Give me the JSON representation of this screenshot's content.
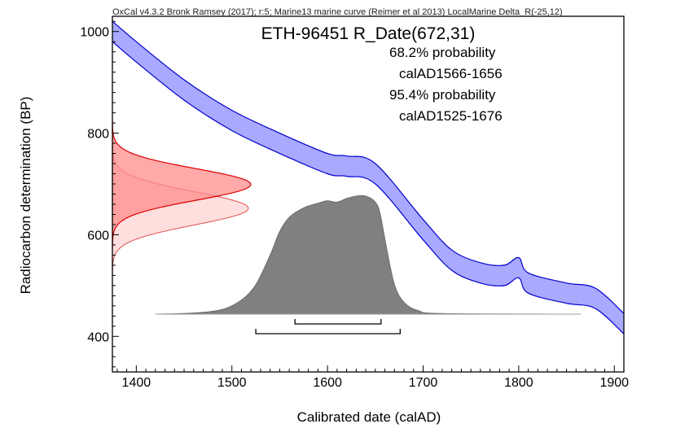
{
  "chart_data": {
    "type": "area",
    "header": "OxCal v4.3.2 Bronk Ramsey (2017); r:5; Marine13 marine curve (Reimer et al 2013) LocalMarine Delta_R(-25,12)",
    "title": "ETH-96451 R_Date(672,31)",
    "annotations": [
      "68.2% probability",
      "calAD1566-1656",
      "95.4% probability",
      "calAD1525-1676"
    ],
    "xlabel": "Calibrated date (calAD)",
    "ylabel": "Radiocarbon determination (BP)",
    "xlim": [
      1375,
      1910
    ],
    "ylim": [
      330,
      1030
    ],
    "xticks": [
      1400,
      1500,
      1600,
      1700,
      1800,
      1900
    ],
    "yticks": [
      400,
      600,
      800,
      1000
    ],
    "calibration_curve": {
      "x": [
        1375,
        1400,
        1450,
        1500,
        1550,
        1600,
        1620,
        1650,
        1700,
        1730,
        1760,
        1785,
        1800,
        1810,
        1850,
        1880,
        1910
      ],
      "upper": [
        1020,
        980,
        905,
        845,
        800,
        760,
        755,
        740,
        630,
        570,
        545,
        540,
        555,
        525,
        505,
        495,
        445
      ],
      "lower": [
        980,
        940,
        865,
        805,
        760,
        720,
        715,
        700,
        590,
        530,
        505,
        500,
        515,
        485,
        465,
        455,
        405
      ],
      "color": "#7b7bff"
    },
    "radiocarbon_date": {
      "mean": 672,
      "sigma": 31,
      "color": "#ff4d4d"
    },
    "calibrated_distribution": {
      "x": [
        1420,
        1460,
        1490,
        1510,
        1525,
        1540,
        1550,
        1560,
        1575,
        1590,
        1600,
        1610,
        1620,
        1630,
        1640,
        1650,
        1655,
        1662,
        1670,
        1680,
        1695,
        1720,
        1865
      ],
      "density": [
        0,
        0.01,
        0.04,
        0.12,
        0.25,
        0.5,
        0.7,
        0.82,
        0.9,
        0.94,
        0.96,
        0.95,
        0.98,
        1.0,
        1.0,
        0.95,
        0.85,
        0.55,
        0.25,
        0.1,
        0.03,
        0.005,
        0
      ],
      "color": "#808080"
    },
    "ranges": [
      {
        "label": "68.2%",
        "from": 1566,
        "to": 1656
      },
      {
        "label": "95.4%",
        "from": 1525,
        "to": 1676
      }
    ]
  }
}
